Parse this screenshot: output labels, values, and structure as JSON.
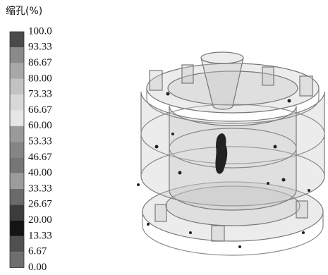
{
  "legend": {
    "title": "缩孔(%)",
    "labels": [
      "100.0",
      "93.33",
      "86.67",
      "80.00",
      "73.33",
      "66.67",
      "60.00",
      "53.33",
      "46.67",
      "40.00",
      "33.33",
      "26.67",
      "20.00",
      "13.33",
      "6.67",
      "0.00"
    ],
    "colors": [
      "#4a4a4a",
      "#8a8a8a",
      "#a8a8a8",
      "#c2c2c2",
      "#d8d8d8",
      "#e6e6e6",
      "#9a9a9a",
      "#858585",
      "#767676",
      "#9c9c9c",
      "#6a6a6a",
      "#3c3c3c",
      "#141414",
      "#505050",
      "#6e6e6e"
    ]
  }
}
